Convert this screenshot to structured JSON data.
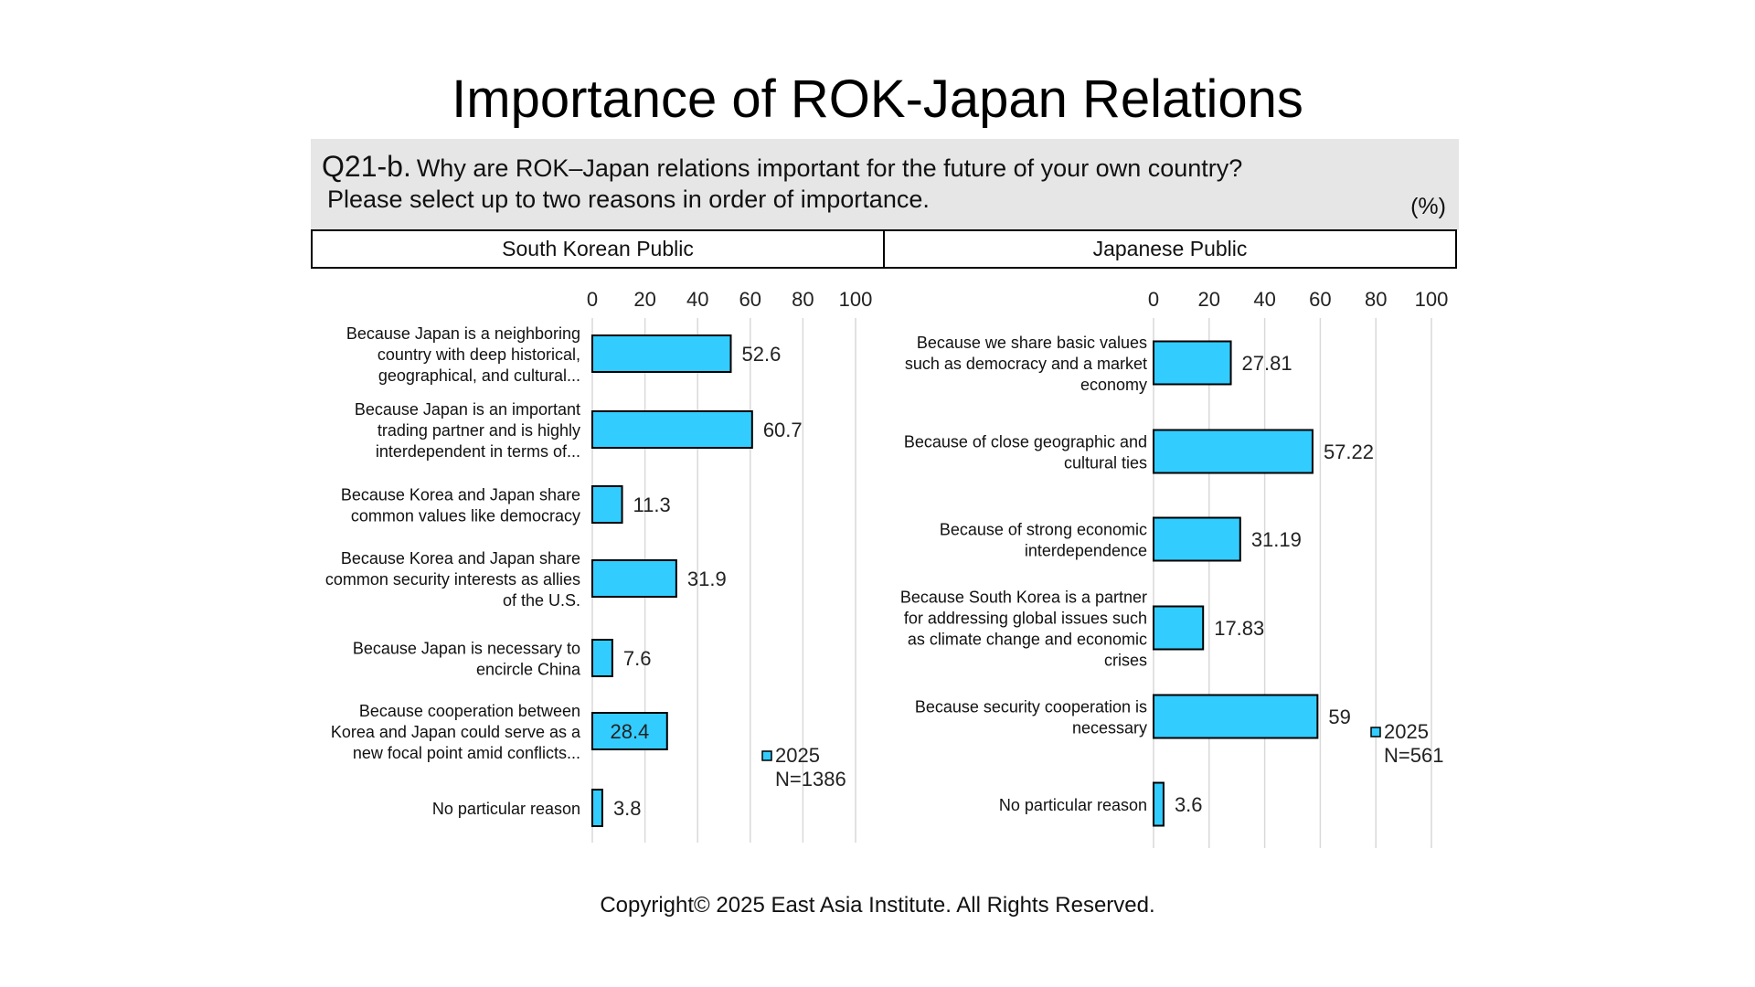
{
  "title": "Importance of ROK-Japan Relations",
  "question": {
    "code": "Q21-b.",
    "text_line1": "Why are ROK–Japan relations important for the future of your own country?",
    "text_line2": "Please select up to two reasons in order of importance.",
    "unit": "(%)"
  },
  "panels": {
    "left": "South Korean Public",
    "right": "Japanese Public"
  },
  "footer": "Copyright© 2025 East Asia Institute. All Rights Reserved.",
  "colors": {
    "bar": "#33ccff",
    "bar_border": "#000000",
    "grid": "#d9d9d9"
  },
  "chart_data": [
    {
      "type": "bar",
      "orientation": "horizontal",
      "xlim": [
        0,
        100
      ],
      "xticks": [
        0,
        20,
        40,
        60,
        80,
        100
      ],
      "grid": true,
      "legend": {
        "series": "2025",
        "note": "N=1386",
        "position": "bottom-right"
      },
      "categories": [
        [
          "Because Japan is a neighboring",
          "country with deep historical,",
          "geographical, and cultural..."
        ],
        [
          "Because Japan is an important",
          "trading partner and is highly",
          "interdependent in terms of..."
        ],
        [
          "Because Korea and Japan share",
          "common values like democracy"
        ],
        [
          "Because Korea and Japan share",
          "common security interests as allies",
          "of the U.S."
        ],
        [
          "Because Japan is necessary to",
          "encircle China"
        ],
        [
          "Because cooperation between",
          "Korea and Japan could serve as a",
          "new focal point amid conflicts..."
        ],
        [
          "No particular reason"
        ]
      ],
      "series": [
        {
          "name": "2025",
          "values": [
            52.6,
            60.7,
            11.3,
            31.9,
            7.6,
            28.4,
            3.8
          ]
        }
      ],
      "value_labels": [
        "52.6",
        "60.7",
        "11.3",
        "31.9",
        "7.6",
        "28.4",
        "3.8"
      ]
    },
    {
      "type": "bar",
      "orientation": "horizontal",
      "xlim": [
        0,
        100
      ],
      "xticks": [
        0,
        20,
        40,
        60,
        80,
        100
      ],
      "grid": true,
      "legend": {
        "series": "2025",
        "note": "N=561",
        "position": "bottom-right"
      },
      "categories": [
        [
          "Because we share basic values",
          "such as democracy and a market",
          "economy"
        ],
        [
          "Because of close geographic and",
          "cultural ties"
        ],
        [
          "Because of strong economic",
          "interdependence"
        ],
        [
          "Because South Korea is a partner",
          "for addressing global issues such",
          "as climate change and economic",
          "crises"
        ],
        [
          "Because security cooperation is",
          "necessary"
        ],
        [
          "No particular reason"
        ]
      ],
      "series": [
        {
          "name": "2025",
          "values": [
            27.81,
            57.22,
            31.19,
            17.83,
            59,
            3.6
          ]
        }
      ],
      "value_labels": [
        "27.81",
        "57.22",
        "31.19",
        "17.83",
        "59",
        "3.6"
      ]
    }
  ]
}
